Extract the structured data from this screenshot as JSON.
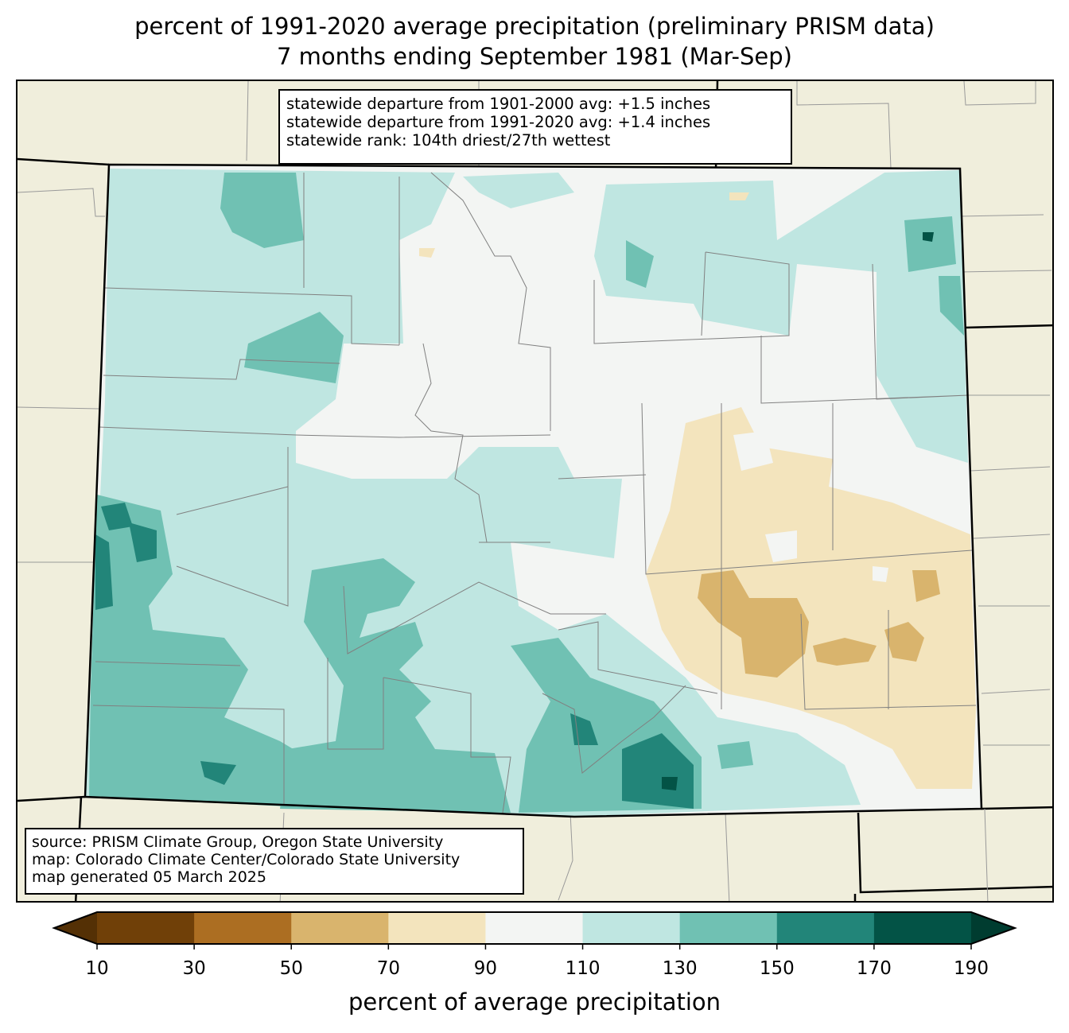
{
  "title": {
    "line1": "percent of 1991-2020 average precipitation (preliminary PRISM data)",
    "line2": "7 months ending September 1981 (Mar-Sep)"
  },
  "stats_box": {
    "line1": "statewide departure from 1901-2000 avg: +1.5 inches",
    "line2": "statewide departure from 1991-2020 avg: +1.4 inches",
    "line3": "statewide rank: 104th driest/27th wettest"
  },
  "source_box": {
    "line1": "source: PRISM Climate Group, Oregon State University",
    "line2": "map: Colorado Climate Center/Colorado State University",
    "line3": "map generated 05 March 2025"
  },
  "colorbar": {
    "label": "percent of average precipitation",
    "ticks": [
      "10",
      "30",
      "50",
      "70",
      "90",
      "110",
      "130",
      "150",
      "170",
      "190"
    ],
    "under_color": "#543005",
    "over_color": "#003c30",
    "colors": [
      "#704008",
      "#ac6e22",
      "#d9b46d",
      "#f3e4bd",
      "#f3f5f3",
      "#bfe6e1",
      "#70c1b3",
      "#228579",
      "#035346"
    ]
  },
  "palette": {
    "background": "#f0eedc",
    "county_line": "#808080"
  }
}
